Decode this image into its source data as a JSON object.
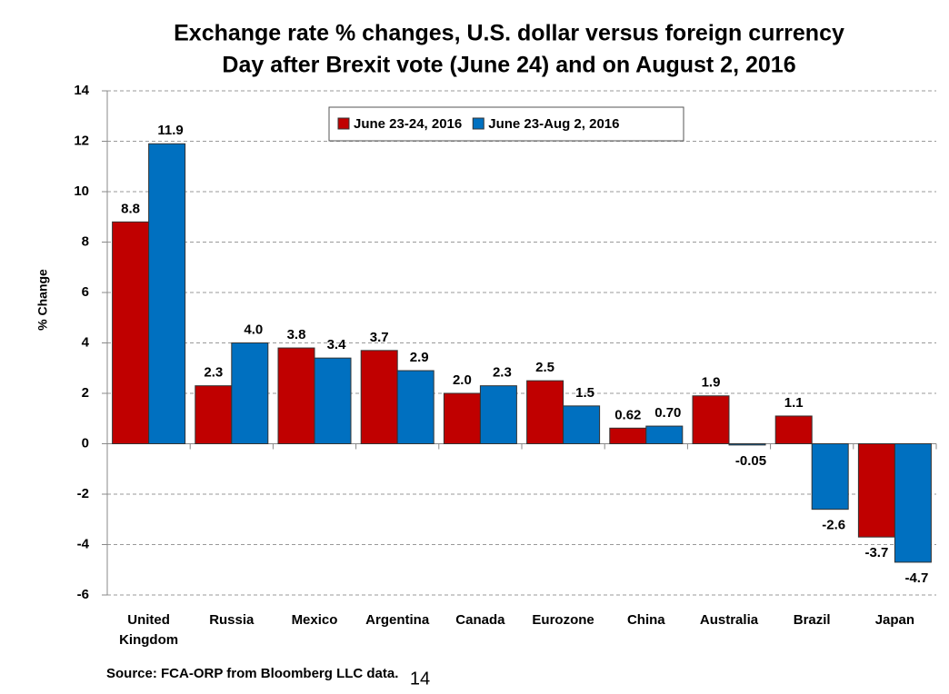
{
  "chart_data": {
    "type": "bar",
    "title": "Exchange rate % changes, U.S. dollar versus foreign currency",
    "subtitle": "Day after Brexit vote (June 24) and on August 2, 2016",
    "y_label": "% Change",
    "source": "Source: FCA-ORP from Bloomberg LLC data.",
    "categories": [
      "United Kingdom",
      "Russia",
      "Mexico",
      "Argentina",
      "Canada",
      "Eurozone",
      "China",
      "Australia",
      "Brazil",
      "Japan"
    ],
    "series": [
      {
        "name": "June 23-24, 2016",
        "color": "#c00000",
        "values": [
          8.8,
          2.3,
          3.8,
          3.7,
          2.0,
          2.5,
          0.62,
          1.9,
          1.1,
          -3.7
        ],
        "value_labels": [
          "8.8",
          "2.3",
          "3.8",
          "3.7",
          "2.0",
          "2.5",
          "0.62",
          "1.9",
          "1.1",
          "-3.7"
        ]
      },
      {
        "name": "June 23-Aug 2, 2016",
        "color": "#0070c0",
        "values": [
          11.9,
          4.0,
          3.4,
          2.9,
          2.3,
          1.5,
          0.7,
          -0.05,
          -2.6,
          -4.7
        ],
        "value_labels": [
          "11.9",
          "4.0",
          "3.4",
          "2.9",
          "2.3",
          "1.5",
          "0.70",
          "-0.05",
          "-2.6",
          "-4.7"
        ]
      }
    ],
    "ylim": [
      -6,
      14
    ],
    "yticks": [
      -6,
      -4,
      -2,
      0,
      2,
      4,
      6,
      8,
      10,
      12,
      14
    ],
    "grid": true,
    "legend": "top"
  },
  "page_number": "14"
}
